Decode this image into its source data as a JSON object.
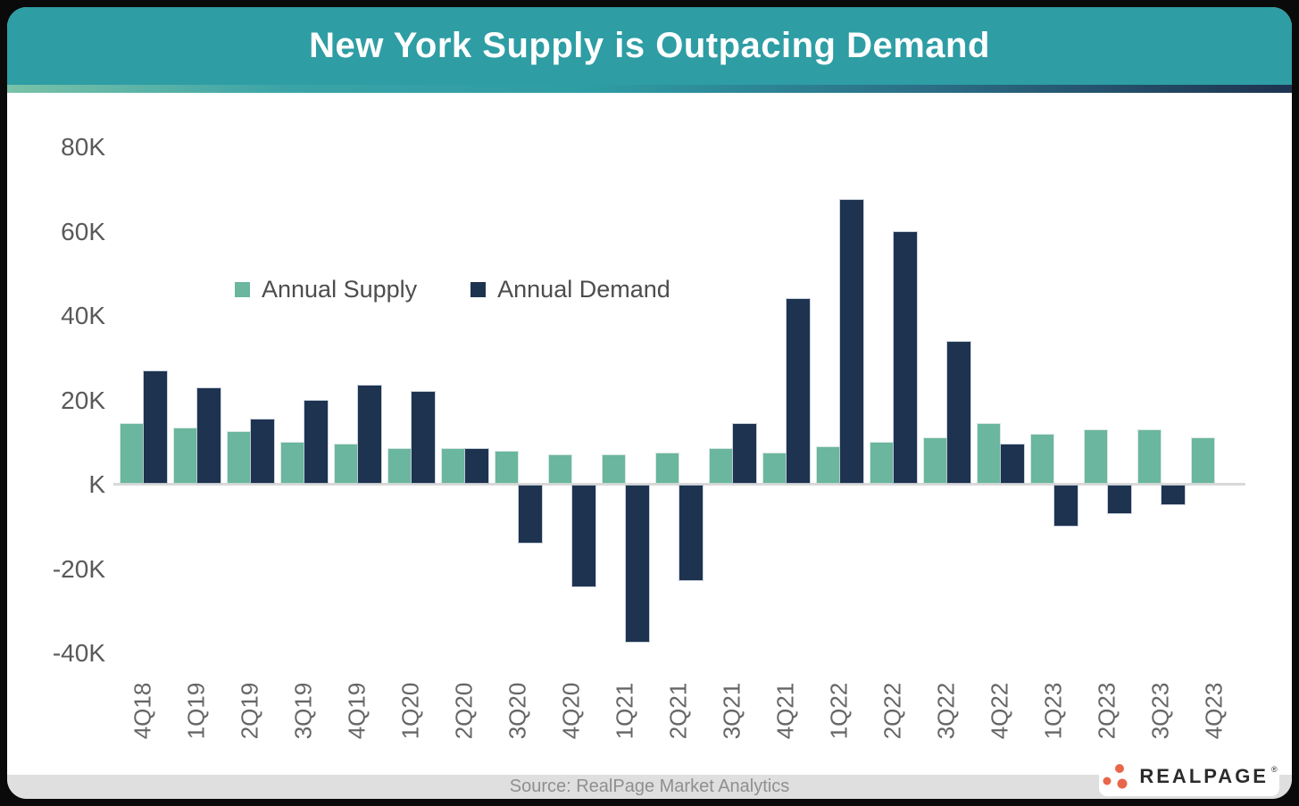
{
  "page": {
    "background": "#0a0a0a"
  },
  "header": {
    "title": "New York Supply is Outpacing Demand",
    "background": "#2e9da4"
  },
  "chart_data": {
    "type": "bar",
    "title": "New York Supply is Outpacing Demand",
    "value_unit": "thousands of units (K)",
    "categories": [
      "4Q18",
      "1Q19",
      "2Q19",
      "3Q19",
      "4Q19",
      "1Q20",
      "2Q20",
      "3Q20",
      "4Q20",
      "1Q21",
      "2Q21",
      "3Q21",
      "4Q21",
      "1Q22",
      "2Q22",
      "3Q22",
      "4Q22",
      "1Q23",
      "2Q23",
      "3Q23",
      "4Q23"
    ],
    "series": [
      {
        "name": "Annual Supply",
        "color": "#6ab69e",
        "values": [
          14,
          13,
          12,
          9.5,
          9,
          8,
          8,
          7.5,
          6.5,
          6.5,
          7,
          8,
          7,
          8.5,
          9.5,
          10.5,
          14,
          11.5,
          12.5,
          12.5,
          10.5
        ]
      },
      {
        "name": "Annual Demand",
        "color": "#1e3350",
        "values": [
          26.5,
          22.5,
          15,
          19.5,
          23,
          21.5,
          8,
          -13.5,
          -24,
          -37,
          -22.5,
          14,
          43.5,
          67,
          59.5,
          33.5,
          9,
          -9.5,
          -6.5,
          -4.5,
          0
        ]
      }
    ],
    "xlabel": "",
    "ylabel": "",
    "ylim": [
      -45,
      85
    ],
    "yticks": [
      {
        "value": 80,
        "label": "80K"
      },
      {
        "value": 60,
        "label": "60K"
      },
      {
        "value": 40,
        "label": "40K"
      },
      {
        "value": 20,
        "label": "20K"
      },
      {
        "value": 0,
        "label": "K"
      },
      {
        "value": -20,
        "label": "-20K"
      },
      {
        "value": -40,
        "label": "-40K"
      }
    ],
    "grid": false,
    "legend_position": "inside-top-left"
  },
  "footer": {
    "source": "Source: RealPage Market Analytics"
  },
  "logo": {
    "text": "REALPAGE",
    "trademark": "®",
    "dot_color": "#e8674b",
    "text_color": "#2b2b2b"
  }
}
